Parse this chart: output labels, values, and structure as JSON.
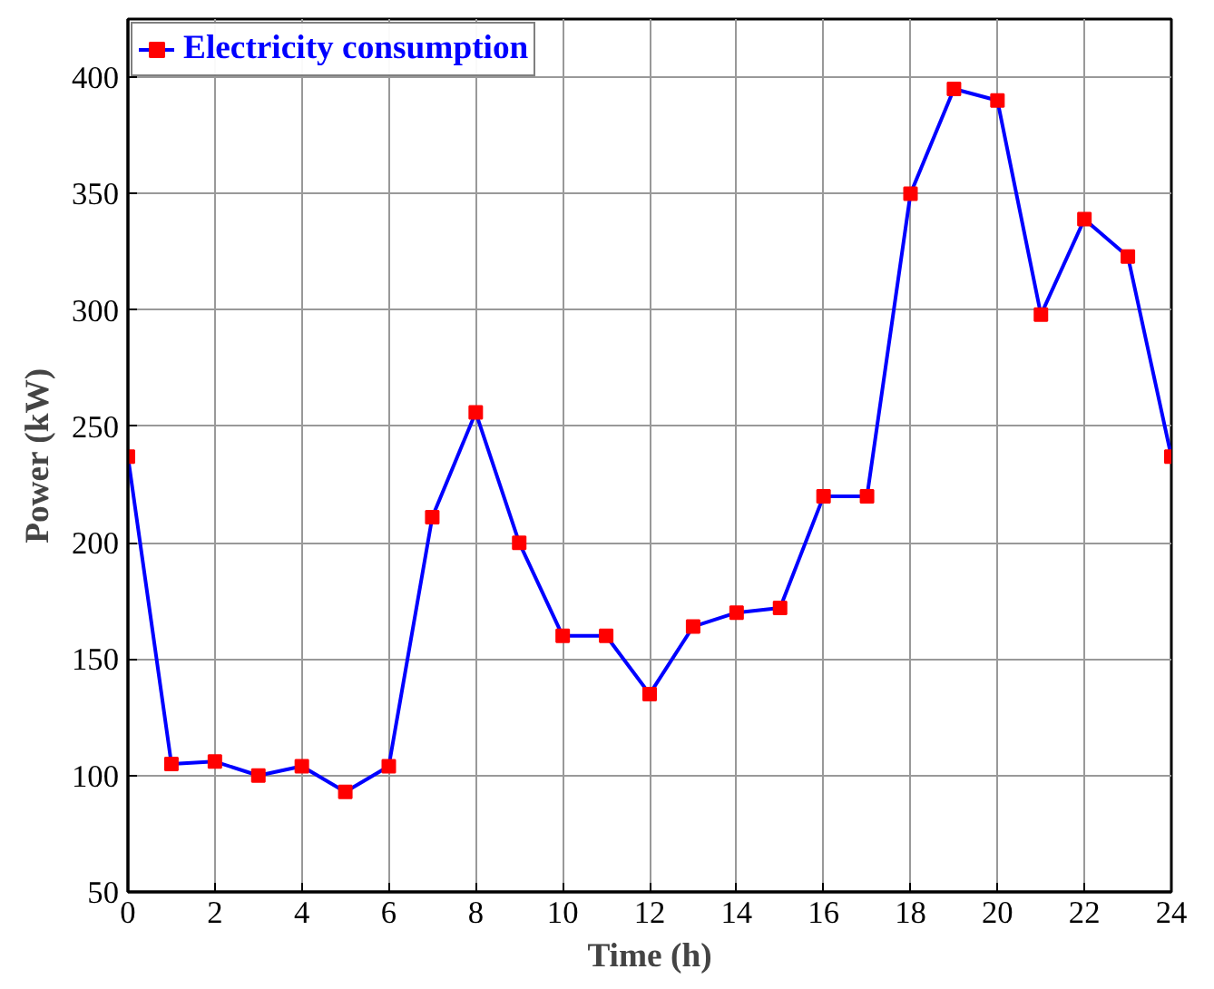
{
  "chart_data": {
    "type": "line",
    "xlabel": "Time (h)",
    "ylabel": "Power (kW)",
    "x": [
      0,
      1,
      2,
      3,
      4,
      5,
      6,
      7,
      8,
      9,
      10,
      11,
      12,
      13,
      14,
      15,
      16,
      17,
      18,
      19,
      20,
      21,
      22,
      23,
      24
    ],
    "series": [
      {
        "name": "Electricity consumption",
        "color": "#0000ff",
        "colors": [
          "#ff0000",
          "#ff0000",
          "#ff0000",
          "#ff0000",
          "#ff0000",
          "#ff0000",
          "#ff0000",
          "#ff0000",
          "#ff0000",
          "#ff0000",
          "#ff0000",
          "#ff0000",
          "#ff0000",
          "#ff0000",
          "#ff0000",
          "#ff0000",
          "#ff0000",
          "#ff0000",
          "#ff0000",
          "#ff0000",
          "#ff0000",
          "#ff0000",
          "#ff0000",
          "#ff0000",
          "#ff0000"
        ],
        "values": [
          237,
          105,
          106,
          100,
          104,
          93,
          104,
          211,
          256,
          200,
          160,
          160,
          135,
          164,
          170,
          172,
          220,
          220,
          350,
          395,
          390,
          298,
          339,
          323,
          237
        ]
      }
    ],
    "xlim": [
      0,
      24
    ],
    "ylim": [
      50,
      425
    ],
    "xticks": [
      0,
      2,
      4,
      6,
      8,
      10,
      12,
      14,
      16,
      18,
      20,
      22,
      24
    ],
    "yticks": [
      50,
      100,
      150,
      200,
      250,
      300,
      350,
      400
    ],
    "grid": true,
    "legend": "top left",
    "marker": "square",
    "line_style": "solid"
  }
}
